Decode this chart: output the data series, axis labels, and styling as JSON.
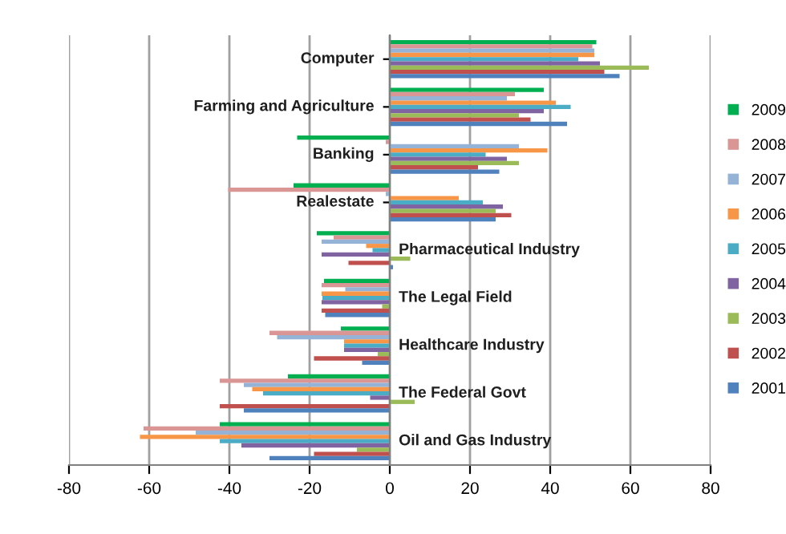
{
  "chart_data": {
    "type": "bar",
    "orientation": "horizontal",
    "categories": [
      "Computer",
      "Farming and Agriculture",
      "Banking",
      "Realestate",
      "Pharmaceutical Industry",
      "The Legal Field",
      "Healthcare Industry",
      "The Federal Govt",
      "Oil and Gas Industry"
    ],
    "series": [
      {
        "name": "2009",
        "color": "#00b050",
        "values": [
          51.5,
          38.4,
          -23.1,
          -24,
          -18.2,
          -16.4,
          -12.2,
          -25.4,
          -42.4
        ]
      },
      {
        "name": "2008",
        "color": "#d99694",
        "values": [
          50.5,
          31.2,
          -1,
          -40.3,
          -14,
          -17,
          -30,
          -42.4,
          -61.4
        ]
      },
      {
        "name": "2007",
        "color": "#95b3d7",
        "values": [
          51,
          29.2,
          32.2,
          -1,
          -17,
          -11.1,
          -28.1,
          -36.4,
          -48.4
        ]
      },
      {
        "name": "2006",
        "color": "#f79646",
        "values": [
          51,
          41.4,
          39.3,
          17.2,
          -5.9,
          -17,
          -11.4,
          -34.3,
          -62.3
        ]
      },
      {
        "name": "2005",
        "color": "#4bacc6",
        "values": [
          47,
          45.1,
          23.9,
          23.2,
          -4.3,
          -16.8,
          -11.4,
          -31.6,
          -42.4
        ]
      },
      {
        "name": "2004",
        "color": "#8064a2",
        "values": [
          52.4,
          38.4,
          29.2,
          28.2,
          -17,
          -17,
          -11.4,
          -4.9,
          -37
        ]
      },
      {
        "name": "2003",
        "color": "#9bbb59",
        "values": [
          64.6,
          32.2,
          32.2,
          26.4,
          5.1,
          -1.9,
          -3,
          6.2,
          -8.2
        ]
      },
      {
        "name": "2002",
        "color": "#c0504d",
        "values": [
          53.5,
          35.1,
          22,
          30.3,
          -10.3,
          -17,
          -18.9,
          -42.4,
          -18.9
        ]
      },
      {
        "name": "2001",
        "color": "#4f81bd",
        "values": [
          57.3,
          44.2,
          27.3,
          26.4,
          0.8,
          -16.1,
          -6.9,
          -36.4,
          -30
        ]
      }
    ],
    "xlim": [
      -80,
      80
    ],
    "xticks": [
      -80,
      -60,
      -40,
      -20,
      0,
      20,
      40,
      60,
      80
    ],
    "grid": "x",
    "legend": "right"
  }
}
